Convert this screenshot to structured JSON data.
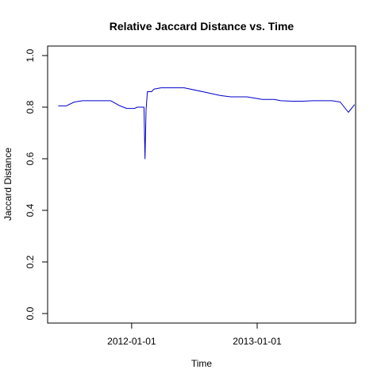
{
  "chart_data": {
    "type": "line",
    "title": "Relative Jaccard Distance vs. Time",
    "xlabel": "Time",
    "ylabel": "Jaccard Distance",
    "xlim": [
      "2011-05-01",
      "2013-10-15"
    ],
    "ylim": [
      0,
      1
    ],
    "x_ticks": [
      {
        "value": "2012-01-01",
        "label": "2012-01-01"
      },
      {
        "value": "2013-01-01",
        "label": "2013-01-01"
      }
    ],
    "y_ticks": [
      {
        "value": 0.0,
        "label": "0.0"
      },
      {
        "value": 0.2,
        "label": "0.2"
      },
      {
        "value": 0.4,
        "label": "0.4"
      },
      {
        "value": 0.6,
        "label": "0.6"
      },
      {
        "value": 0.8,
        "label": "0.8"
      },
      {
        "value": 1.0,
        "label": "1.0"
      }
    ],
    "grid": false,
    "series": [
      {
        "color": "#0000cc",
        "x": [
          "2011-06-01",
          "2011-06-24",
          "2011-07-18",
          "2011-08-11",
          "2011-09-30",
          "2011-11-01",
          "2011-11-28",
          "2011-12-18",
          "2012-01-10",
          "2012-01-17",
          "2012-02-06",
          "2012-02-09",
          "2012-02-12",
          "2012-02-16",
          "2012-02-21",
          "2012-02-28",
          "2012-03-06",
          "2012-03-27",
          "2012-04-11",
          "2012-05-06",
          "2012-06-02",
          "2012-07-26",
          "2012-09-16",
          "2012-10-16",
          "2012-11-08",
          "2012-12-02",
          "2013-01-16",
          "2013-02-20",
          "2013-03-11",
          "2013-04-14",
          "2013-05-11",
          "2013-06-14",
          "2013-07-11",
          "2013-08-07",
          "2013-08-31",
          "2013-09-24",
          "2013-10-12"
        ],
        "y": [
          0.805,
          0.805,
          0.82,
          0.825,
          0.825,
          0.825,
          0.805,
          0.795,
          0.795,
          0.8,
          0.8,
          0.6,
          0.79,
          0.86,
          0.86,
          0.86,
          0.87,
          0.875,
          0.875,
          0.875,
          0.875,
          0.86,
          0.845,
          0.84,
          0.84,
          0.84,
          0.83,
          0.83,
          0.825,
          0.823,
          0.823,
          0.825,
          0.825,
          0.825,
          0.82,
          0.78,
          0.81
        ]
      }
    ]
  }
}
